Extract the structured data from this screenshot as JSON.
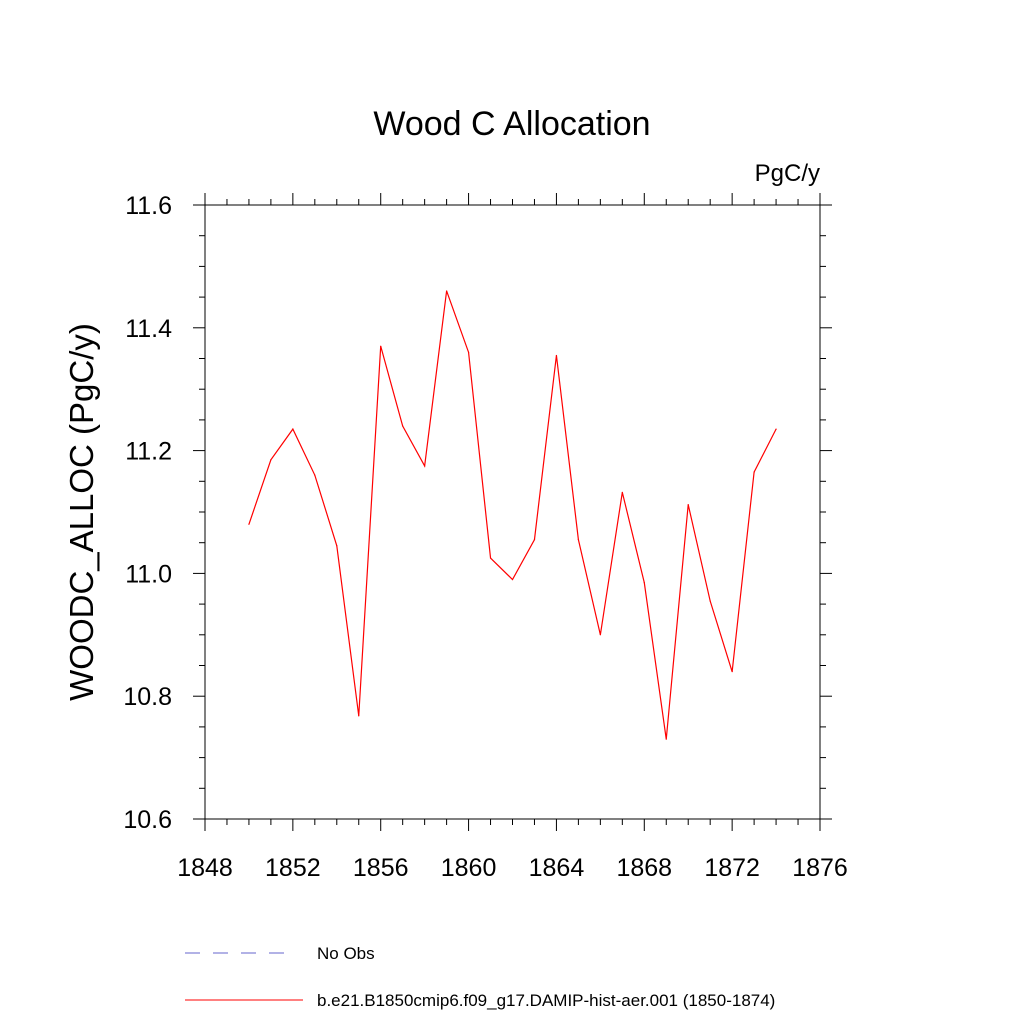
{
  "chart_data": {
    "type": "line",
    "title": "Wood C Allocation",
    "units_label": "PgC/y",
    "ylabel": "WOODC_ALLOC  (PgC/y)",
    "xlabel": "",
    "xlim": [
      1848,
      1876
    ],
    "ylim": [
      10.6,
      11.6
    ],
    "x_ticks": [
      1848,
      1852,
      1856,
      1860,
      1864,
      1868,
      1872,
      1876
    ],
    "x_tick_labels": [
      "1848",
      "1852",
      "1856",
      "1860",
      "1864",
      "1868",
      "1872",
      "1876"
    ],
    "y_ticks": [
      10.6,
      10.8,
      11.0,
      11.2,
      11.4,
      11.6
    ],
    "y_tick_labels": [
      "10.6",
      "10.8",
      "11.0",
      "11.2",
      "11.4",
      "11.6"
    ],
    "grid": false,
    "legend_position": "bottom",
    "series": [
      {
        "name": "No Obs",
        "color": "#6666cc",
        "dash": "dashed",
        "x": [],
        "y": []
      },
      {
        "name": "b.e21.B1850cmip6.f09_g17.DAMIP-hist-aer.001 (1850-1874)",
        "color": "#ff0000",
        "dash": "solid",
        "x": [
          1850,
          1851,
          1852,
          1853,
          1854,
          1855,
          1856,
          1857,
          1858,
          1859,
          1860,
          1861,
          1862,
          1863,
          1864,
          1865,
          1866,
          1867,
          1868,
          1869,
          1870,
          1871,
          1872,
          1873,
          1874
        ],
        "y": [
          11.08,
          11.185,
          11.235,
          11.16,
          11.045,
          10.768,
          11.37,
          11.24,
          11.175,
          11.46,
          11.36,
          11.025,
          10.99,
          11.055,
          11.355,
          11.055,
          10.9,
          11.132,
          10.985,
          10.73,
          11.112,
          10.955,
          10.84,
          11.165,
          11.235
        ]
      }
    ]
  }
}
